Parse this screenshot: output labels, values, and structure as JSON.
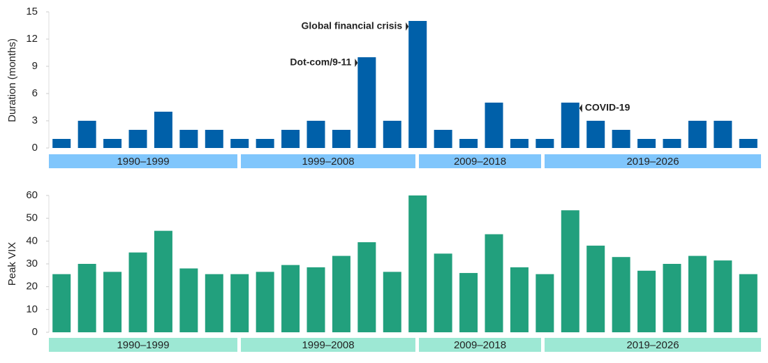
{
  "chart_data": [
    {
      "type": "bar",
      "y_label": "Duration (months)",
      "color": "#0060a9",
      "band_color": "#80c6fc",
      "categories": [
        null,
        null,
        null,
        null,
        null,
        null,
        null,
        null,
        null,
        null,
        null,
        null,
        null,
        null,
        null,
        null,
        null,
        null,
        null,
        null,
        null,
        null,
        null,
        null,
        null,
        null,
        null,
        null
      ],
      "values": [
        1,
        3,
        1,
        2,
        4,
        2,
        2,
        1,
        1,
        2,
        3,
        2,
        10,
        3,
        14,
        2,
        1,
        5,
        1,
        1,
        5,
        3,
        2,
        1,
        1,
        3,
        3,
        1
      ],
      "ylim": [
        0,
        15
      ],
      "yticks": [
        0,
        3,
        6,
        9,
        12,
        15
      ],
      "periods": [
        "1990–1999",
        "1999–2008",
        "2009–2018",
        "2019–2026"
      ],
      "annotations": [
        {
          "text": "Dot-com/9-11"
        },
        {
          "text": "Global financial crisis"
        },
        {
          "text": "COVID-19"
        }
      ]
    },
    {
      "type": "bar",
      "y_label": "Peak VIX",
      "color": "#22a07d",
      "band_color": "#9de8d4",
      "categories": [
        null,
        null,
        null,
        null,
        null,
        null,
        null,
        null,
        null,
        null,
        null,
        null,
        null,
        null,
        null,
        null,
        null,
        null,
        null,
        null,
        null,
        null,
        null,
        null,
        null,
        null,
        null,
        null
      ],
      "values": [
        25.5,
        30,
        26.5,
        35,
        44.5,
        28,
        25.5,
        25.5,
        26.5,
        29.5,
        28.5,
        33.5,
        39.5,
        26.5,
        60,
        34.5,
        26,
        43,
        28.5,
        25.5,
        53.5,
        38,
        33,
        27,
        30,
        33.5,
        31.5,
        25.5
      ],
      "ylim": [
        0,
        60
      ],
      "yticks": [
        0,
        10,
        20,
        30,
        40,
        50,
        60
      ],
      "periods": [
        "1990–1999",
        "1999–2008",
        "2009–2018",
        "2019–2026"
      ]
    }
  ]
}
